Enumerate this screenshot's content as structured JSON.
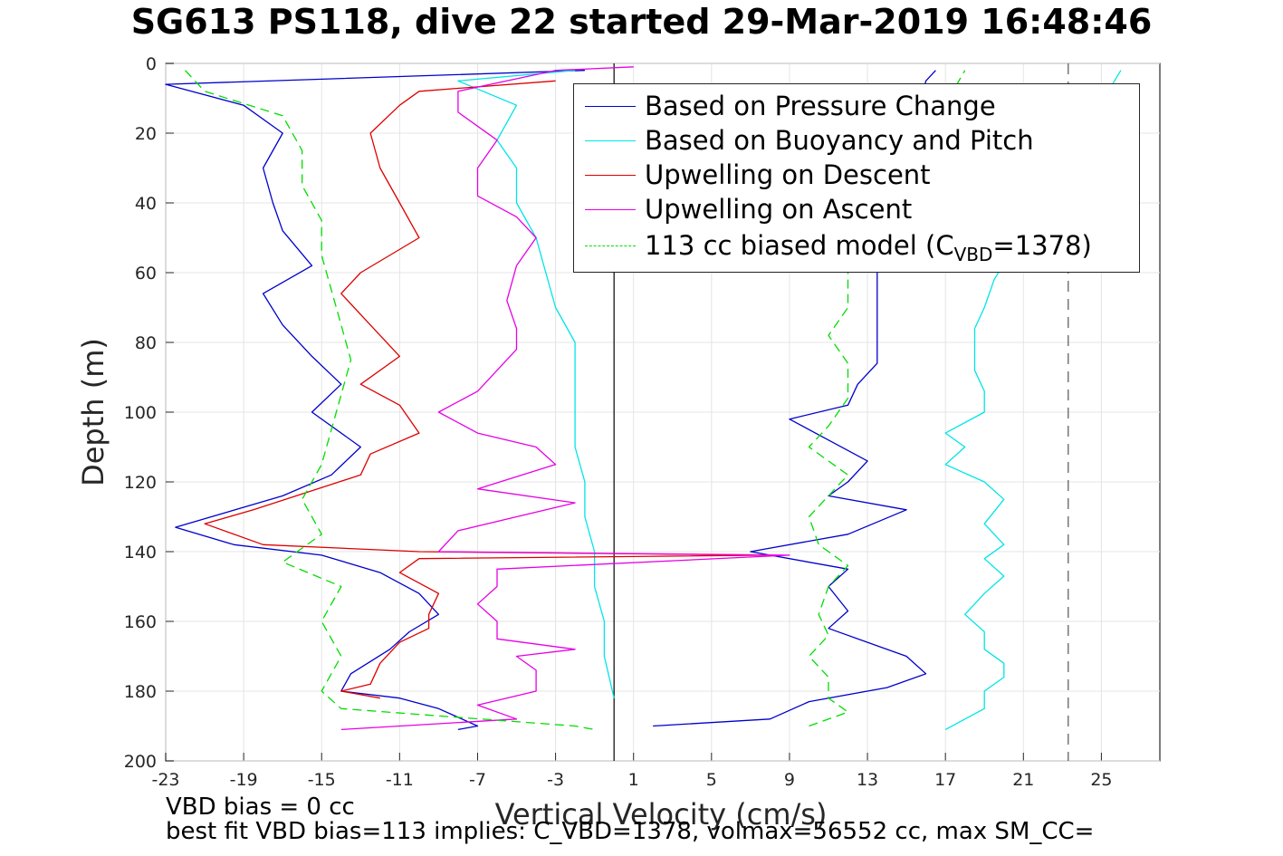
{
  "chart_data": {
    "type": "line",
    "title": "SG613 PS118, dive 22 started 29-Mar-2019 16:48:46",
    "xlabel": "Vertical Velocity (cm/s)",
    "ylabel": "Depth (m)",
    "xlim": [
      -23,
      28
    ],
    "ylim": [
      0,
      200
    ],
    "y_reversed": true,
    "grid": true,
    "x_ticks": [
      "-23",
      "-19",
      "-15",
      "-11",
      "-7",
      "-3",
      "1",
      "5",
      "9",
      "13",
      "17",
      "21",
      "25"
    ],
    "y_ticks": [
      "0",
      "20",
      "40",
      "60",
      "80",
      "100",
      "120",
      "140",
      "160",
      "180",
      "200"
    ],
    "reference_lines": [
      {
        "x": 0,
        "style": "solid",
        "color": "#000000"
      },
      {
        "x": 23.3,
        "style": "dashed",
        "color": "#555555"
      }
    ],
    "legend_position": "top-right",
    "series": [
      {
        "name": "Based on Pressure Change",
        "color": "#0000cc",
        "style": "solid",
        "descent": [
          [
            -1.5,
            2
          ],
          [
            -23,
            6
          ],
          [
            -19,
            12
          ],
          [
            -17,
            20
          ],
          [
            -18,
            30
          ],
          [
            -17.5,
            40
          ],
          [
            -17,
            48
          ],
          [
            -15.5,
            58
          ],
          [
            -18,
            66
          ],
          [
            -17,
            75
          ],
          [
            -15.5,
            84
          ],
          [
            -14,
            92
          ],
          [
            -15.5,
            100
          ],
          [
            -13,
            110
          ],
          [
            -14.5,
            118
          ],
          [
            -17,
            124
          ],
          [
            -22.5,
            133
          ],
          [
            -19.5,
            138
          ],
          [
            -15,
            141
          ],
          [
            -12,
            146
          ],
          [
            -10,
            152
          ],
          [
            -9,
            158
          ],
          [
            -10.5,
            163
          ],
          [
            -11.5,
            168
          ],
          [
            -13.5,
            175
          ],
          [
            -14,
            180
          ],
          [
            -11,
            182
          ],
          [
            -9,
            185
          ],
          [
            -7,
            190
          ],
          [
            -8,
            191
          ]
        ],
        "ascent": [
          [
            2,
            190
          ],
          [
            8,
            188
          ],
          [
            10,
            183
          ],
          [
            14,
            179
          ],
          [
            16,
            175
          ],
          [
            15,
            170
          ],
          [
            13,
            166
          ],
          [
            11,
            162
          ],
          [
            12,
            157
          ],
          [
            11,
            150
          ],
          [
            12,
            145
          ],
          [
            7,
            140
          ],
          [
            12,
            135
          ],
          [
            15,
            128
          ],
          [
            11,
            124
          ],
          [
            12,
            120
          ],
          [
            13,
            114
          ],
          [
            11,
            108
          ],
          [
            9,
            102
          ],
          [
            12,
            98
          ],
          [
            12.5,
            92
          ],
          [
            13.5,
            86
          ],
          [
            13.5,
            78
          ],
          [
            13.5,
            68
          ],
          [
            13.5,
            60
          ],
          [
            16,
            5
          ],
          [
            16.5,
            2
          ]
        ]
      },
      {
        "name": "Based on Buoyancy and Pitch",
        "color": "#00e5e5",
        "style": "solid",
        "descent": [
          [
            -2,
            2
          ],
          [
            -8,
            5
          ],
          [
            -5,
            12
          ],
          [
            -6,
            22
          ],
          [
            -5,
            30
          ],
          [
            -5,
            40
          ],
          [
            -4,
            50
          ],
          [
            -3.5,
            60
          ],
          [
            -3,
            70
          ],
          [
            -2,
            80
          ],
          [
            -2,
            90
          ],
          [
            -2,
            100
          ],
          [
            -2,
            110
          ],
          [
            -1.5,
            120
          ],
          [
            -1.5,
            130
          ],
          [
            -1,
            140
          ],
          [
            -1,
            150
          ],
          [
            -0.5,
            160
          ],
          [
            -0.5,
            170
          ],
          [
            0,
            182
          ]
        ],
        "ascent": [
          [
            17,
            191
          ],
          [
            18,
            188
          ],
          [
            19,
            185
          ],
          [
            19,
            180
          ],
          [
            20,
            176
          ],
          [
            20,
            172
          ],
          [
            19,
            168
          ],
          [
            19,
            163
          ],
          [
            18,
            158
          ],
          [
            19,
            152
          ],
          [
            20,
            147
          ],
          [
            19,
            142
          ],
          [
            20,
            138
          ],
          [
            19,
            132
          ],
          [
            20,
            125
          ],
          [
            19,
            120
          ],
          [
            17,
            115
          ],
          [
            18,
            110
          ],
          [
            17,
            106
          ],
          [
            19,
            100
          ],
          [
            19,
            94
          ],
          [
            18.5,
            88
          ],
          [
            18.5,
            82
          ],
          [
            18.5,
            76
          ],
          [
            19,
            70
          ],
          [
            19.5,
            62
          ],
          [
            26,
            2
          ]
        ]
      },
      {
        "name": "Upwelling on Descent",
        "color": "#dd0000",
        "style": "solid",
        "descent": [
          [
            -3,
            5
          ],
          [
            -10,
            8
          ],
          [
            -11,
            12
          ],
          [
            -12.5,
            20
          ],
          [
            -12,
            30
          ],
          [
            -11,
            40
          ],
          [
            -10,
            50
          ],
          [
            -13,
            60
          ],
          [
            -14,
            66
          ],
          [
            -12.5,
            75
          ],
          [
            -11,
            84
          ],
          [
            -13,
            92
          ],
          [
            -11,
            98
          ],
          [
            -10,
            106
          ],
          [
            -12.5,
            112
          ],
          [
            -13,
            118
          ],
          [
            -18.5,
            128
          ],
          [
            -21,
            132
          ],
          [
            -18,
            138
          ],
          [
            -10,
            140
          ],
          [
            8,
            141
          ],
          [
            -10,
            142
          ],
          [
            -11,
            146
          ],
          [
            -9,
            152
          ],
          [
            -9.5,
            158
          ],
          [
            -9.5,
            162
          ],
          [
            -11,
            166
          ],
          [
            -12,
            172
          ],
          [
            -12.5,
            178
          ],
          [
            -14,
            180
          ],
          [
            -12,
            182
          ]
        ],
        "ascent": []
      },
      {
        "name": "Upwelling on Ascent",
        "color": "#e600e6",
        "style": "solid",
        "descent": [],
        "ascent": [
          [
            -14,
            191
          ],
          [
            -5,
            188
          ],
          [
            -7,
            184
          ],
          [
            -4,
            180
          ],
          [
            -4,
            174
          ],
          [
            -5,
            170
          ],
          [
            -2,
            168
          ],
          [
            -6,
            165
          ],
          [
            -6,
            160
          ],
          [
            -7,
            155
          ],
          [
            -6,
            150
          ],
          [
            -6,
            145
          ],
          [
            9,
            141
          ],
          [
            -9,
            140
          ],
          [
            -8,
            134
          ],
          [
            -5,
            130
          ],
          [
            -2,
            126
          ],
          [
            -7,
            122
          ],
          [
            -3,
            115
          ],
          [
            -4,
            110
          ],
          [
            -7,
            106
          ],
          [
            -9,
            100
          ],
          [
            -7,
            94
          ],
          [
            -6,
            88
          ],
          [
            -5,
            82
          ],
          [
            -5,
            76
          ],
          [
            -5.5,
            68
          ],
          [
            -5,
            58
          ],
          [
            -4,
            50
          ],
          [
            -5,
            44
          ],
          [
            -7,
            38
          ],
          [
            -7,
            30
          ],
          [
            -6,
            22
          ],
          [
            -8,
            14
          ],
          [
            -8,
            8
          ],
          [
            -3,
            2
          ],
          [
            1,
            1
          ]
        ]
      },
      {
        "name": "113 cc biased model (CVBD=1378)",
        "label_main": "113 cc biased model (C",
        "label_sub": "VBD",
        "label_end": "=1378)",
        "color": "#00dd00",
        "style": "dashed",
        "descent": [
          [
            -22,
            2
          ],
          [
            -21,
            8
          ],
          [
            -17,
            15
          ],
          [
            -16,
            25
          ],
          [
            -16,
            35
          ],
          [
            -15,
            45
          ],
          [
            -15,
            55
          ],
          [
            -14.5,
            65
          ],
          [
            -14,
            75
          ],
          [
            -13.5,
            85
          ],
          [
            -14,
            95
          ],
          [
            -14.5,
            105
          ],
          [
            -15,
            115
          ],
          [
            -16,
            125
          ],
          [
            -15,
            135
          ],
          [
            -17,
            143
          ],
          [
            -14,
            150
          ],
          [
            -15,
            160
          ],
          [
            -14,
            170
          ],
          [
            -15,
            180
          ],
          [
            -14,
            185
          ],
          [
            -2,
            190
          ],
          [
            -1,
            191
          ]
        ],
        "ascent": [
          [
            10,
            190
          ],
          [
            12,
            186
          ],
          [
            11,
            182
          ],
          [
            11,
            176
          ],
          [
            10,
            170
          ],
          [
            11,
            164
          ],
          [
            10.5,
            158
          ],
          [
            11,
            150
          ],
          [
            12,
            144
          ],
          [
            10.5,
            138
          ],
          [
            10,
            130
          ],
          [
            11,
            124
          ],
          [
            12,
            118
          ],
          [
            10,
            110
          ],
          [
            11,
            104
          ],
          [
            12,
            96
          ],
          [
            12,
            86
          ],
          [
            11,
            78
          ],
          [
            12,
            70
          ],
          [
            12,
            60
          ],
          [
            18,
            2
          ]
        ]
      }
    ]
  },
  "notes": {
    "bias": "VBD bias = 0 cc",
    "best_fit": "best fit VBD bias=113 implies: C_VBD=1378, volmax=56552 cc, max SM_CC="
  }
}
